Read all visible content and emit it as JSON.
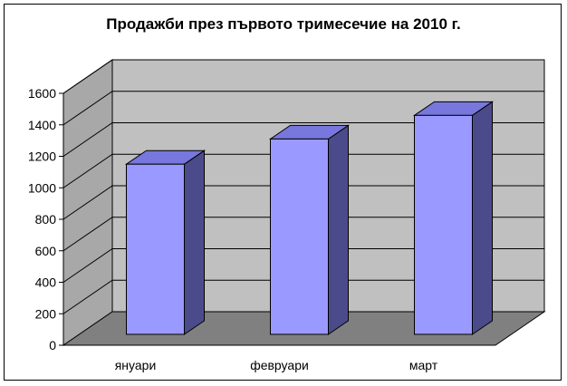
{
  "chart_data": {
    "type": "bar",
    "title": "Продажби през първото тримесечие на 2010 г.",
    "categories": [
      "януари",
      "февруари",
      "март"
    ],
    "values": [
      1150,
      1310,
      1460
    ],
    "ylim": [
      0,
      1600
    ],
    "yticks": [
      0,
      200,
      400,
      600,
      800,
      1000,
      1200,
      1400,
      1600
    ],
    "ytick_labels": [
      "0",
      "200",
      "400",
      "600",
      "800",
      "1000",
      "1200",
      "1400",
      "1600"
    ],
    "xlabel": "",
    "ylabel": "",
    "grid": true,
    "legend": "none",
    "style": "3d-column"
  },
  "colors": {
    "wall": "#c0c0c0",
    "floor": "#808080",
    "side_wall": "#a8a8a8",
    "bar_front": "#9999ff",
    "bar_top": "#7777dd",
    "bar_side": "#4b4b8c",
    "grid": "#000000"
  }
}
